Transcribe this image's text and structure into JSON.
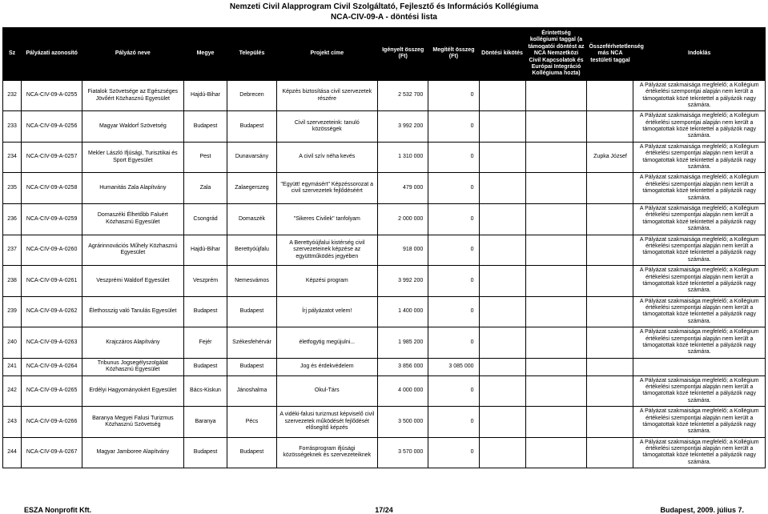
{
  "title_line1": "Nemzeti Civil Alapprogram Civil Szolgáltató, Fejlesztő és Információs Kollégiuma",
  "title_line2": "NCA-CIV-09-A - döntési lista",
  "headers": {
    "sz": "Sz",
    "id": "Pályázati azonosító",
    "name": "Pályázó neve",
    "megye": "Megye",
    "telepules": "Település",
    "projekt": "Projekt címe",
    "igenyelt": "Igényelt összeg (Ft)",
    "megitelt": "Megítélt összeg (Ft)",
    "dontesi": "Döntési kikötés",
    "erintettseg": "Érintettség kollégiumi taggal (a támogatói döntést az NCA Nemzetközi Civil Kapcsolatok és Európai Integráció Kollégiuma hozta)",
    "osszefer": "Összeférhetetlenség más NCA testületi taggal",
    "indoklas": "Indoklás"
  },
  "reason_a": "A Pályázat szakmaisága megfelelő; a Kollégium értékelési szempontjai alapján nem került a támogatottak közé tekintettel a pályázók nagy számára.",
  "rows": [
    {
      "sz": "232",
      "id": "NCA-CIV-09-A-0255",
      "name": "Fiatalok Szövetsége az Egészséges Jövőért Közhasznú Egyesület",
      "megye": "Hajdú-Bihar",
      "tel": "Debrecen",
      "proj": "Képzés biztosítása civil szervezetek részére",
      "ig": "2 532 700",
      "meg": "0",
      "dk": "",
      "er": "",
      "os": "",
      "ind": "@A"
    },
    {
      "sz": "233",
      "id": "NCA-CIV-09-A-0256",
      "name": "Magyar Waldorf Szövetség",
      "megye": "Budapest",
      "tel": "Budapest",
      "proj": "Civil szervezeteink: tanuló közösségek",
      "ig": "3 992 200",
      "meg": "0",
      "dk": "",
      "er": "",
      "os": "",
      "ind": "@A"
    },
    {
      "sz": "234",
      "id": "NCA-CIV-09-A-0257",
      "name": "Mekler László Ifjúsági, Turisztikai és Sport Egyesület",
      "megye": "Pest",
      "tel": "Dunavarsány",
      "proj": "A civil szív néha kevés",
      "ig": "1 310 000",
      "meg": "0",
      "dk": "",
      "er": "",
      "os": "Zupka József",
      "ind": "@A"
    },
    {
      "sz": "235",
      "id": "NCA-CIV-09-A-0258",
      "name": "Humanitás Zala Alapítvány",
      "megye": "Zala",
      "tel": "Zalaegerszeg",
      "proj": "\"Együtt! egymásért\" Képzéssorozat a civil szervezetek fejlődéséért",
      "ig": "479 000",
      "meg": "0",
      "dk": "",
      "er": "",
      "os": "",
      "ind": "@A"
    },
    {
      "sz": "236",
      "id": "NCA-CIV-09-A-0259",
      "name": "Domaszéki Élhetőbb Faluért Közhasznú Egyesület",
      "megye": "Csongrád",
      "tel": "Domaszék",
      "proj": "\"Sikeres Civilek\" tanfolyam",
      "ig": "2 000 000",
      "meg": "0",
      "dk": "",
      "er": "",
      "os": "",
      "ind": "@A"
    },
    {
      "sz": "237",
      "id": "NCA-CIV-09-A-0260",
      "name": "Agrárinnovációs Műhely Közhasznú Egyesület",
      "megye": "Hajdú-Bihar",
      "tel": "Berettyóújfalu",
      "proj": "A Berettyóújfalui kistérség civil szervezeteinek képzése az együttműködés jegyében",
      "ig": "918 000",
      "meg": "0",
      "dk": "",
      "er": "",
      "os": "",
      "ind": "@A"
    },
    {
      "sz": "238",
      "id": "NCA-CIV-09-A-0261",
      "name": "Veszprémi Waldorf Egyesület",
      "megye": "Veszprém",
      "tel": "Nemesvámos",
      "proj": "Képzési program",
      "ig": "3 992 200",
      "meg": "0",
      "dk": "",
      "er": "",
      "os": "",
      "ind": "@A"
    },
    {
      "sz": "239",
      "id": "NCA-CIV-09-A-0262",
      "name": "Élethosszig való Tanulás Egyesület",
      "megye": "Budapest",
      "tel": "Budapest",
      "proj": "Írj pályázatot velem!",
      "ig": "1 400 000",
      "meg": "0",
      "dk": "",
      "er": "",
      "os": "",
      "ind": "@A"
    },
    {
      "sz": "240",
      "id": "NCA-CIV-09-A-0263",
      "name": "Krajczáros Alapítvány",
      "megye": "Fejér",
      "tel": "Székesfehérvár",
      "proj": "életfogytig megújulni...",
      "ig": "1 985 200",
      "meg": "0",
      "dk": "",
      "er": "",
      "os": "",
      "ind": "@A"
    },
    {
      "sz": "241",
      "id": "NCA-CIV-09-A-0264",
      "name": "Tribunus Jogsegélyszolgálat Közhasznú Egyesület",
      "megye": "Budapest",
      "tel": "Budapest",
      "proj": "Jog és érdekvédelem",
      "ig": "3 856 000",
      "meg": "3 085 000",
      "dk": "",
      "er": "",
      "os": "",
      "ind": ""
    },
    {
      "sz": "242",
      "id": "NCA-CIV-09-A-0265",
      "name": "Erdélyi Hagyományokért Egyesület",
      "megye": "Bács-Kiskun",
      "tel": "Jánoshalma",
      "proj": "Okul-Társ",
      "ig": "4 000 000",
      "meg": "0",
      "dk": "",
      "er": "",
      "os": "",
      "ind": "@A"
    },
    {
      "sz": "243",
      "id": "NCA-CIV-09-A-0266",
      "name": "Baranya Megyei Falusi Turizmus Közhasznú Szövetség",
      "megye": "Baranya",
      "tel": "Pécs",
      "proj": "A vidéki-falusi turizmust képviselő civil szervezetek működését fejlődését elősegítő képzés",
      "ig": "3 500 000",
      "meg": "0",
      "dk": "",
      "er": "",
      "os": "",
      "ind": "@A"
    },
    {
      "sz": "244",
      "id": "NCA-CIV-09-A-0267",
      "name": "Magyar Jamboree Alapítvány",
      "megye": "Budapest",
      "tel": "Budapest",
      "proj": "Forrásprogram ifjúsági közösségeknek és szervezeteiknek",
      "ig": "3 570 000",
      "meg": "0",
      "dk": "",
      "er": "",
      "os": "",
      "ind": "@A"
    }
  ],
  "footer": {
    "left": "ESZA Nonprofit Kft.",
    "center": "17/24",
    "right": "Budapest, 2009. július 7."
  }
}
